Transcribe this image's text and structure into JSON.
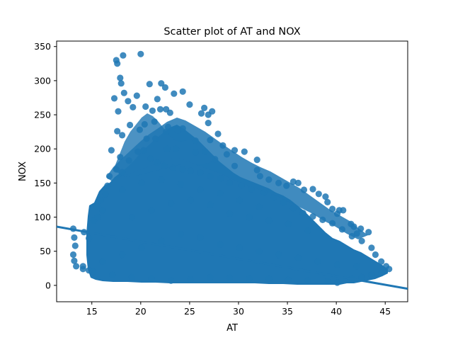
{
  "chart_data": {
    "type": "scatter",
    "title": "Scatter plot of AT and NOX",
    "xlabel": "AT",
    "ylabel": "NOX",
    "xlim": [
      11.4,
      47.3
    ],
    "ylim": [
      -24,
      358
    ],
    "xticks": [
      15,
      20,
      25,
      30,
      35,
      40,
      45
    ],
    "yticks": [
      0,
      50,
      100,
      150,
      200,
      250,
      300,
      350
    ],
    "grid": false,
    "legend": "none",
    "regression_line": {
      "x": [
        11.4,
        47.3
      ],
      "y": [
        86,
        -5
      ]
    },
    "series": [
      {
        "color": "#1f77b4",
        "points": [
          [
            17.5,
            330
          ],
          [
            17.6,
            325
          ],
          [
            18.2,
            337
          ],
          [
            20.0,
            339
          ],
          [
            17.9,
            304
          ],
          [
            18.0,
            296
          ],
          [
            18.3,
            282
          ],
          [
            19.6,
            278
          ],
          [
            20.9,
            295
          ],
          [
            22.1,
            296
          ],
          [
            22.5,
            290
          ],
          [
            23.4,
            281
          ],
          [
            17.3,
            274
          ],
          [
            18.7,
            270
          ],
          [
            21.7,
            273
          ],
          [
            24.3,
            284
          ],
          [
            17.7,
            255
          ],
          [
            19.2,
            261
          ],
          [
            20.5,
            262
          ],
          [
            21.2,
            256
          ],
          [
            22.0,
            258
          ],
          [
            22.6,
            258
          ],
          [
            23.0,
            253
          ],
          [
            25.0,
            265
          ],
          [
            26.2,
            252
          ],
          [
            26.9,
            250
          ],
          [
            27.3,
            255
          ],
          [
            26.5,
            260
          ],
          [
            17.6,
            226
          ],
          [
            18.1,
            220
          ],
          [
            18.9,
            235
          ],
          [
            19.9,
            228
          ],
          [
            20.4,
            236
          ],
          [
            21.4,
            240
          ],
          [
            22.8,
            232
          ],
          [
            23.8,
            227
          ],
          [
            24.3,
            230
          ],
          [
            26.9,
            238
          ],
          [
            27.9,
            222
          ],
          [
            25.6,
            212
          ],
          [
            27.1,
            213
          ],
          [
            28.4,
            205
          ],
          [
            29.6,
            198
          ],
          [
            30.6,
            196
          ],
          [
            28.8,
            192
          ],
          [
            31.9,
            184
          ],
          [
            26.6,
            196
          ],
          [
            22.7,
            200
          ],
          [
            17.0,
            198
          ],
          [
            17.9,
            188
          ],
          [
            21.5,
            215
          ],
          [
            32.2,
            160
          ],
          [
            31.9,
            169
          ],
          [
            33.1,
            155
          ],
          [
            34.1,
            150
          ],
          [
            34.9,
            146
          ],
          [
            35.6,
            152
          ],
          [
            36.1,
            150
          ],
          [
            36.7,
            140
          ],
          [
            37.6,
            141
          ],
          [
            38.2,
            134
          ],
          [
            38.9,
            130
          ],
          [
            39.1,
            122
          ],
          [
            39.6,
            112
          ],
          [
            40.3,
            110
          ],
          [
            40.7,
            110
          ],
          [
            40.1,
            105
          ],
          [
            41.5,
            90
          ],
          [
            41.8,
            86
          ],
          [
            42.5,
            83
          ],
          [
            43.3,
            78
          ],
          [
            42.1,
            76
          ],
          [
            13.1,
            83
          ],
          [
            13.2,
            70
          ],
          [
            13.3,
            58
          ],
          [
            13.1,
            45
          ],
          [
            13.2,
            36
          ],
          [
            13.4,
            28
          ],
          [
            14.2,
            78
          ],
          [
            14.7,
            69
          ],
          [
            14.1,
            28
          ],
          [
            14.7,
            22
          ],
          [
            15.2,
            95
          ],
          [
            15.6,
            100
          ],
          [
            15.5,
            116
          ],
          [
            15.9,
            125
          ],
          [
            16.6,
            146
          ],
          [
            16.4,
            134
          ],
          [
            16.1,
            110
          ],
          [
            16.8,
            160
          ],
          [
            17.5,
            170
          ],
          [
            18.1,
            166
          ],
          [
            18.8,
            183
          ],
          [
            19.7,
            196
          ],
          [
            20.3,
            198
          ],
          [
            21.0,
            186
          ],
          [
            21.7,
            180
          ],
          [
            22.4,
            175
          ],
          [
            23.3,
            172
          ],
          [
            24.3,
            170
          ],
          [
            25.1,
            168
          ],
          [
            26.1,
            165
          ],
          [
            27.1,
            160
          ],
          [
            28.2,
            157
          ],
          [
            29.1,
            150
          ],
          [
            30.3,
            146
          ],
          [
            31.3,
            141
          ],
          [
            32.6,
            136
          ],
          [
            33.6,
            129
          ],
          [
            34.6,
            121
          ],
          [
            35.6,
            113
          ],
          [
            36.6,
            106
          ],
          [
            37.6,
            101
          ],
          [
            38.6,
            96
          ],
          [
            39.6,
            91
          ],
          [
            40.6,
            82
          ],
          [
            41.6,
            72
          ],
          [
            42.6,
            65
          ],
          [
            43.6,
            55
          ],
          [
            44.0,
            45
          ],
          [
            44.6,
            35
          ],
          [
            45.1,
            28
          ],
          [
            45.4,
            24
          ],
          [
            44.6,
            18
          ],
          [
            43.6,
            15
          ],
          [
            42.6,
            12
          ],
          [
            41.6,
            10
          ],
          [
            40.1,
            4
          ],
          [
            39.1,
            6
          ],
          [
            37.1,
            7
          ],
          [
            35.1,
            8
          ],
          [
            33.1,
            10
          ],
          [
            31.1,
            10
          ],
          [
            29.1,
            11
          ],
          [
            27.1,
            12
          ],
          [
            25.1,
            9
          ],
          [
            23.1,
            7
          ],
          [
            21.1,
            10
          ],
          [
            19.1,
            12
          ],
          [
            17.1,
            15
          ],
          [
            15.1,
            20
          ],
          [
            14.1,
            24
          ],
          [
            16.1,
            35
          ],
          [
            18.1,
            45
          ],
          [
            20.1,
            55
          ],
          [
            22.1,
            65
          ],
          [
            24.1,
            75
          ],
          [
            26.1,
            70
          ],
          [
            28.1,
            60
          ],
          [
            30.1,
            55
          ],
          [
            32.1,
            50
          ],
          [
            34.1,
            45
          ],
          [
            36.1,
            40
          ],
          [
            38.1,
            35
          ],
          [
            40.1,
            30
          ],
          [
            42.1,
            28
          ],
          [
            19.1,
            100
          ],
          [
            21.1,
            110
          ],
          [
            23.1,
            120
          ],
          [
            25.1,
            125
          ],
          [
            27.1,
            118
          ],
          [
            29.1,
            105
          ],
          [
            31.1,
            100
          ],
          [
            33.1,
            95
          ],
          [
            35.1,
            90
          ],
          [
            37.1,
            80
          ],
          [
            18.1,
            140
          ],
          [
            20.1,
            150
          ],
          [
            22.1,
            155
          ],
          [
            24.1,
            148
          ],
          [
            26.1,
            140
          ],
          [
            28.1,
            135
          ],
          [
            30.1,
            125
          ],
          [
            32.1,
            115
          ],
          [
            23.6,
            200
          ],
          [
            25.6,
            195
          ],
          [
            27.6,
            185
          ],
          [
            29.6,
            175
          ],
          [
            20.6,
            215
          ],
          [
            22.6,
            225
          ]
        ]
      }
    ]
  }
}
